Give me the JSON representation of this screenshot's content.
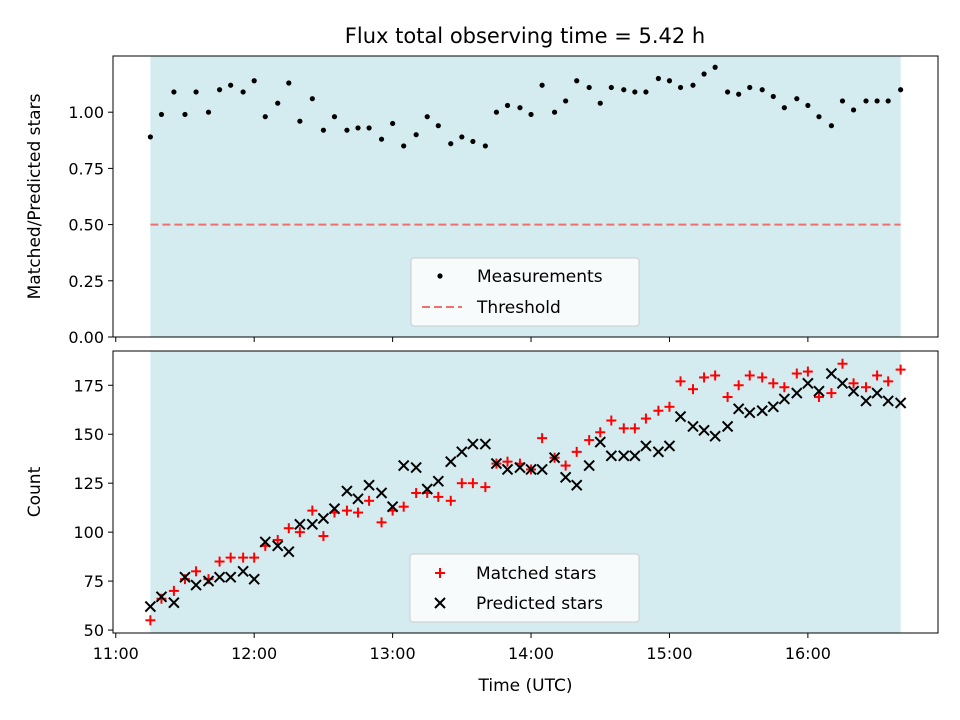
{
  "title": "Flux total observing time = 5.42 h",
  "chart_data": [
    {
      "type": "scatter",
      "panel": "top",
      "title": "Flux total observing time = 5.42 h",
      "xlabel": "",
      "ylabel": "Matched/Predicted stars",
      "xlim_hours": [
        10.98,
        16.94
      ],
      "ylim": [
        0.0,
        1.25
      ],
      "yticks": [
        0.0,
        0.25,
        0.5,
        0.75,
        1.0
      ],
      "ytick_labels": [
        "0.00",
        "0.25",
        "0.50",
        "0.75",
        "1.00"
      ],
      "shaded_interval_hours": [
        11.25,
        16.67
      ],
      "shade_color": "#d4ebf0",
      "threshold": {
        "name": "Threshold",
        "value": 0.5,
        "color": "#f07070",
        "style": "dashed"
      },
      "legend": {
        "location": "lower center",
        "entries": [
          "Measurements",
          "Threshold"
        ]
      },
      "series": [
        {
          "name": "Measurements",
          "marker": "dot",
          "color": "#000000",
          "x": [
            11.25,
            11.33,
            11.42,
            11.5,
            11.58,
            11.67,
            11.75,
            11.83,
            11.92,
            12.0,
            12.08,
            12.17,
            12.25,
            12.33,
            12.42,
            12.5,
            12.58,
            12.67,
            12.75,
            12.83,
            12.92,
            13.0,
            13.08,
            13.17,
            13.25,
            13.33,
            13.42,
            13.5,
            13.58,
            13.67,
            13.75,
            13.83,
            13.92,
            14.0,
            14.08,
            14.17,
            14.25,
            14.33,
            14.42,
            14.5,
            14.58,
            14.67,
            14.75,
            14.83,
            14.92,
            15.0,
            15.08,
            15.17,
            15.25,
            15.33,
            15.42,
            15.5,
            15.58,
            15.67,
            15.75,
            15.83,
            15.92,
            16.0,
            16.08,
            16.17,
            16.25,
            16.33,
            16.42,
            16.5,
            16.58,
            16.67
          ],
          "y": [
            0.89,
            0.99,
            1.09,
            0.99,
            1.09,
            1.0,
            1.1,
            1.12,
            1.09,
            1.14,
            0.98,
            1.04,
            1.13,
            0.96,
            1.06,
            0.92,
            0.98,
            0.92,
            0.93,
            0.93,
            0.88,
            0.95,
            0.85,
            0.9,
            0.98,
            0.94,
            0.86,
            0.89,
            0.87,
            0.85,
            1.0,
            1.03,
            1.02,
            0.99,
            1.12,
            1.0,
            1.05,
            1.14,
            1.11,
            1.04,
            1.11,
            1.1,
            1.09,
            1.09,
            1.15,
            1.14,
            1.11,
            1.12,
            1.17,
            1.2,
            1.09,
            1.08,
            1.11,
            1.1,
            1.07,
            1.02,
            1.06,
            1.03,
            0.98,
            0.94,
            1.05,
            1.01,
            1.05,
            1.05,
            1.05,
            1.1
          ]
        }
      ]
    },
    {
      "type": "scatter",
      "panel": "bottom",
      "title": "",
      "xlabel": "Time (UTC)",
      "ylabel": "Count",
      "xlim_hours": [
        10.98,
        16.94
      ],
      "ylim": [
        48.5,
        192.5
      ],
      "yticks": [
        50,
        75,
        100,
        125,
        150,
        175
      ],
      "ytick_labels": [
        "50",
        "75",
        "100",
        "125",
        "150",
        "175"
      ],
      "xticks_hours": [
        11,
        12,
        13,
        14,
        15,
        16
      ],
      "xtick_labels": [
        "11:00",
        "12:00",
        "13:00",
        "14:00",
        "15:00",
        "16:00"
      ],
      "shaded_interval_hours": [
        11.25,
        16.67
      ],
      "shade_color": "#d4ebf0",
      "legend": {
        "location": "lower center",
        "entries": [
          "Matched stars",
          "Predicted stars"
        ]
      },
      "series": [
        {
          "name": "Matched stars",
          "marker": "plus",
          "color": "#ff0000",
          "x": [
            11.25,
            11.33,
            11.42,
            11.5,
            11.58,
            11.67,
            11.75,
            11.83,
            11.92,
            12.0,
            12.08,
            12.17,
            12.25,
            12.33,
            12.42,
            12.5,
            12.58,
            12.67,
            12.75,
            12.83,
            12.92,
            13.0,
            13.08,
            13.17,
            13.25,
            13.33,
            13.42,
            13.5,
            13.58,
            13.67,
            13.75,
            13.83,
            13.92,
            14.0,
            14.08,
            14.17,
            14.25,
            14.33,
            14.42,
            14.5,
            14.58,
            14.67,
            14.75,
            14.83,
            14.92,
            15.0,
            15.08,
            15.17,
            15.25,
            15.33,
            15.42,
            15.5,
            15.58,
            15.67,
            15.75,
            15.83,
            15.92,
            16.0,
            16.08,
            16.17,
            16.25,
            16.33,
            16.42,
            16.5,
            16.58,
            16.67
          ],
          "y": [
            55,
            66,
            70,
            76,
            80,
            76,
            85,
            87,
            87,
            87,
            93,
            96,
            102,
            100,
            111,
            98,
            110,
            111,
            110,
            116,
            105,
            111,
            113,
            120,
            120,
            118,
            116,
            125,
            125,
            123,
            135,
            136,
            135,
            132,
            148,
            138,
            134,
            141,
            147,
            151,
            157,
            153,
            153,
            158,
            162,
            164,
            177,
            173,
            179,
            180,
            169,
            175,
            180,
            179,
            176,
            174,
            181,
            182,
            169,
            171,
            186,
            176,
            174,
            180,
            177,
            183
          ]
        },
        {
          "name": "Predicted stars",
          "marker": "x",
          "color": "#000000",
          "x": [
            11.25,
            11.33,
            11.42,
            11.5,
            11.58,
            11.67,
            11.75,
            11.83,
            11.92,
            12.0,
            12.08,
            12.17,
            12.25,
            12.33,
            12.42,
            12.5,
            12.58,
            12.67,
            12.75,
            12.83,
            12.92,
            13.0,
            13.08,
            13.17,
            13.25,
            13.33,
            13.42,
            13.5,
            13.58,
            13.67,
            13.75,
            13.83,
            13.92,
            14.0,
            14.08,
            14.17,
            14.25,
            14.33,
            14.42,
            14.5,
            14.58,
            14.67,
            14.75,
            14.83,
            14.92,
            15.0,
            15.08,
            15.17,
            15.25,
            15.33,
            15.42,
            15.5,
            15.58,
            15.67,
            15.75,
            15.83,
            15.92,
            16.0,
            16.08,
            16.17,
            16.25,
            16.33,
            16.42,
            16.5,
            16.58,
            16.67
          ],
          "y": [
            62,
            67,
            64,
            77,
            73,
            75,
            77,
            77,
            80,
            76,
            95,
            93,
            90,
            104,
            104,
            107,
            112,
            121,
            117,
            124,
            120,
            113,
            134,
            133,
            122,
            126,
            136,
            141,
            145,
            145,
            135,
            132,
            133,
            132,
            132,
            138,
            128,
            124,
            134,
            146,
            139,
            139,
            139,
            144,
            141,
            144,
            159,
            154,
            152,
            149,
            154,
            163,
            161,
            162,
            164,
            168,
            171,
            176,
            172,
            181,
            176,
            172,
            167,
            171,
            167,
            166
          ]
        }
      ]
    }
  ]
}
